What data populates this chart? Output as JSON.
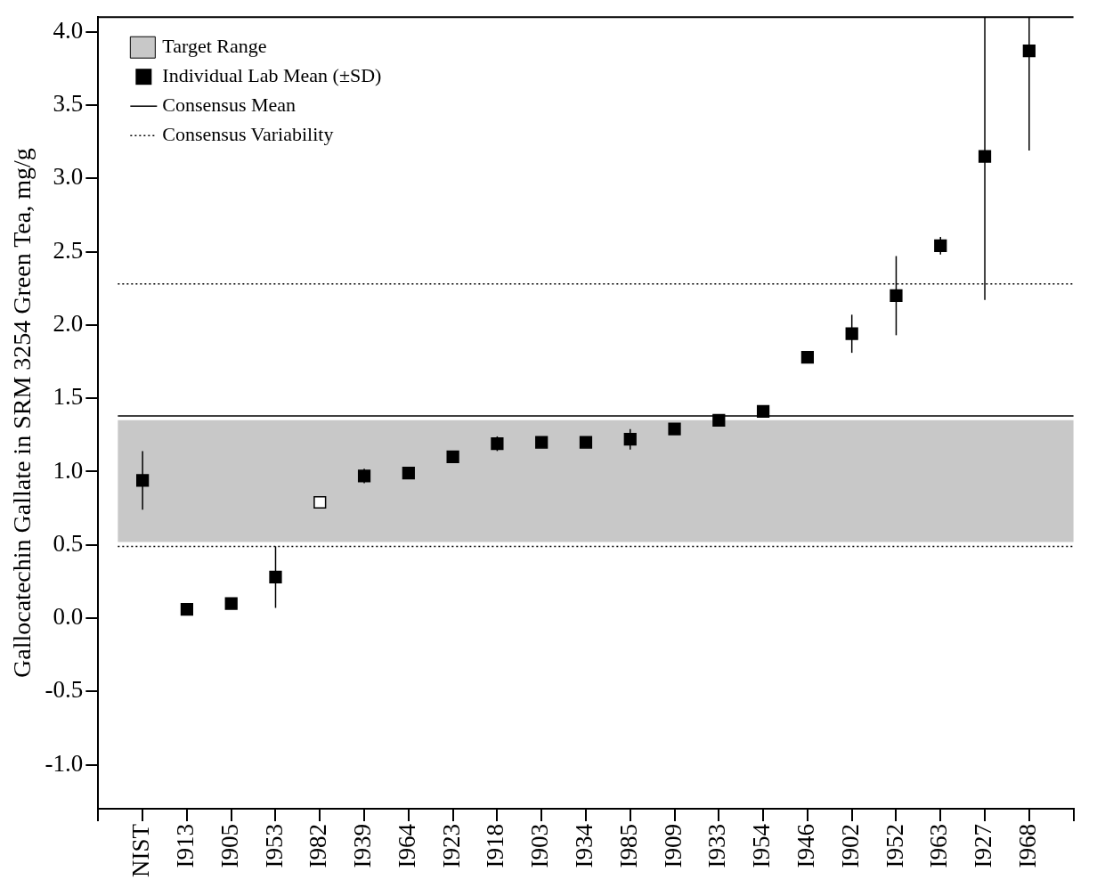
{
  "chart_data": {
    "type": "scatter",
    "ylabel": "Gallocatechin Gallate in SRM 3254 Green Tea, mg/g",
    "categories": [
      "NIST",
      "I913",
      "I905",
      "I953",
      "I982",
      "I939",
      "I964",
      "I923",
      "I918",
      "I903",
      "I934",
      "I985",
      "I909",
      "I933",
      "I954",
      "I946",
      "I902",
      "I952",
      "I963",
      "I927",
      "I968"
    ],
    "series": [
      {
        "name": "Individual Lab Mean (±SD)",
        "color": "#000000",
        "marker": "square",
        "colors": [
          "#000000",
          "#000000",
          "#000000",
          "#000000",
          "#ffffff",
          "#000000",
          "#000000",
          "#000000",
          "#000000",
          "#000000",
          "#000000",
          "#000000",
          "#000000",
          "#000000",
          "#000000",
          "#000000",
          "#000000",
          "#000000",
          "#000000",
          "#000000",
          "#000000"
        ],
        "values": [
          0.94,
          0.06,
          0.1,
          0.28,
          0.79,
          0.97,
          0.99,
          1.1,
          1.19,
          1.2,
          1.2,
          1.22,
          1.29,
          1.35,
          1.41,
          1.78,
          1.94,
          2.2,
          2.54,
          3.15,
          3.87
        ],
        "errors": [
          0.2,
          null,
          null,
          0.21,
          null,
          0.05,
          null,
          null,
          0.05,
          null,
          null,
          0.07,
          null,
          null,
          null,
          null,
          0.13,
          0.27,
          0.06,
          [
            2.17,
            4.1
          ],
          [
            3.19,
            4.1
          ]
        ]
      }
    ],
    "ylim": [
      -1.3,
      4.1
    ],
    "yticks": [
      {
        "value": -1,
        "label": "-1.0"
      },
      {
        "value": -0.5,
        "label": "-0.5"
      },
      {
        "value": 0,
        "label": "0.0"
      },
      {
        "value": 0.5,
        "label": "0.5"
      },
      {
        "value": 1,
        "label": "1.0"
      },
      {
        "value": 1.5,
        "label": "1.5"
      },
      {
        "value": 2,
        "label": "2.0"
      },
      {
        "value": 2.5,
        "label": "2.5"
      },
      {
        "value": 3,
        "label": "3.0"
      },
      {
        "value": 3.5,
        "label": "3.5"
      },
      {
        "value": 4,
        "label": "4.0"
      }
    ],
    "bands": [
      {
        "axis": "y",
        "from": 0.52,
        "to": 1.35,
        "label": "Target Range",
        "color": "#c8c8c8"
      }
    ],
    "ref_lines": [
      {
        "axis": "y",
        "value": 1.38,
        "label": "Consensus Mean",
        "color": "#000000",
        "line_style": "solid"
      },
      {
        "axis": "y",
        "value": 2.28,
        "label": "Consensus Variability",
        "color": "#000000",
        "line_style": "dotted"
      },
      {
        "axis": "y",
        "value": 0.49,
        "color": "#000000",
        "line_style": "dotted"
      }
    ],
    "grid": false,
    "legend": "top left"
  }
}
